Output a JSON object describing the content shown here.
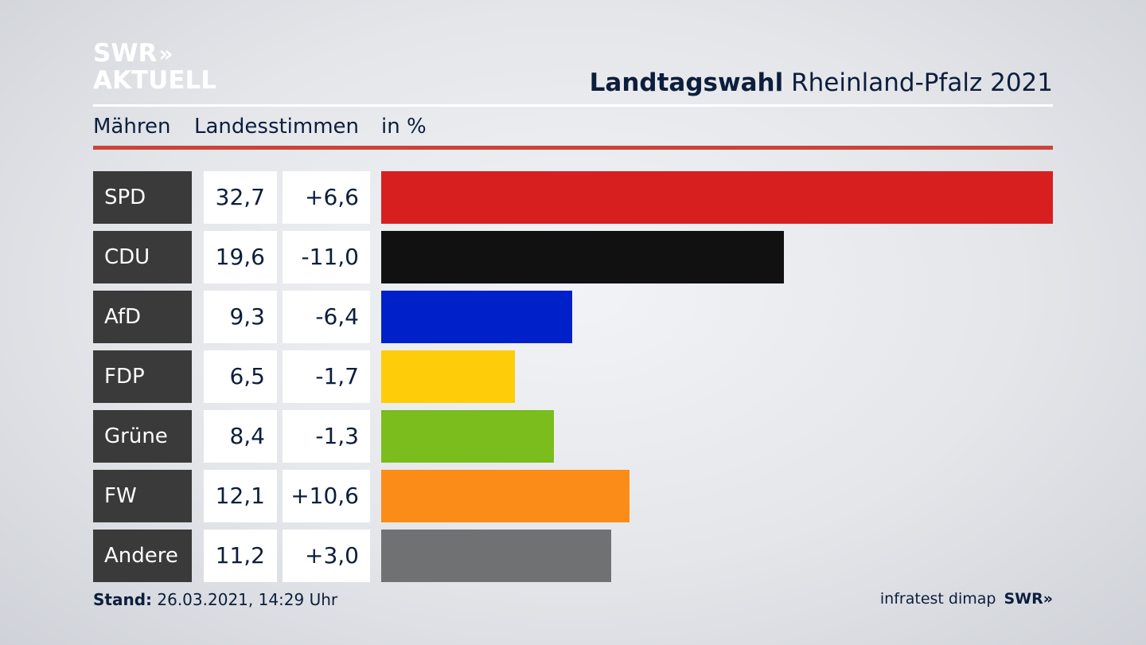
{
  "brand": {
    "line1": "SWR",
    "line1_chevrons": "»",
    "line2": "AKTUELL"
  },
  "header": {
    "title_bold": "Landtagswahl",
    "title_regular": "Rheinland-Pfalz 2021"
  },
  "subheader": {
    "region": "Mähren",
    "metric": "Landesstimmen",
    "unit": "in %"
  },
  "colors": {
    "accent_rule": "#c9453a",
    "label_bg": "#3a3a3a"
  },
  "chart_data": {
    "type": "bar",
    "orientation": "horizontal",
    "categories": [
      "SPD",
      "CDU",
      "AfD",
      "FDP",
      "Grüne",
      "FW",
      "Andere"
    ],
    "values": [
      32.7,
      19.6,
      9.3,
      6.5,
      8.4,
      12.1,
      11.2
    ],
    "value_labels": [
      "32,7",
      "19,6",
      "9,3",
      "6,5",
      "8,4",
      "12,1",
      "11,2"
    ],
    "changes": [
      6.6,
      -11.0,
      -6.4,
      -1.7,
      -1.3,
      10.6,
      3.0
    ],
    "change_labels": [
      "+6,6",
      "-11,0",
      "-6,4",
      "-1,7",
      "-1,3",
      "+10,6",
      "+3,0"
    ],
    "bar_colors": [
      "#d71f20",
      "#111111",
      "#0021c9",
      "#fecc08",
      "#7abd1d",
      "#fb8c17",
      "#707172"
    ],
    "xlim": [
      0,
      32.7
    ],
    "grid": false
  },
  "footer": {
    "stand_label": "Stand:",
    "stand_value": "26.03.2021, 14:29 Uhr",
    "source": "infratest dimap",
    "source_logo": "SWR»"
  }
}
